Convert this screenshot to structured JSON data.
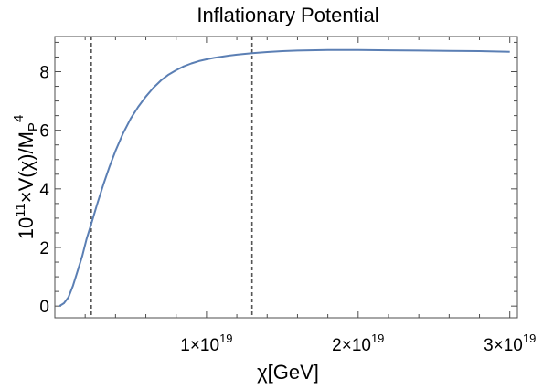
{
  "chart_data": {
    "type": "line",
    "title": "Inflationary Potential",
    "xlabel": "χ[GeV]",
    "ylabel": "10¹¹×V(χ)/M_P⁴",
    "ylabel_parts": {
      "pre": "10",
      "sup": "11",
      "mid": "×V(χ)/",
      "base": "M",
      "sub": "P",
      "sup2": "4"
    },
    "xlim": [
      0,
      3.05e+19
    ],
    "ylim": [
      -0.4,
      9.2
    ],
    "x_ticks": [
      {
        "value": 1e+19,
        "mantissa": "1×10",
        "exponent": "19"
      },
      {
        "value": 2e+19,
        "mantissa": "2×10",
        "exponent": "19"
      },
      {
        "value": 3e+19,
        "mantissa": "3×10",
        "exponent": "19"
      }
    ],
    "y_ticks": [
      0,
      2,
      4,
      6,
      8
    ],
    "vertical_markers": [
      2.4e+18,
      1.3e+19
    ],
    "series": [
      {
        "color": "#5b7fb4",
        "x": [
          3e+17,
          6e+17,
          9e+17,
          1.2e+18,
          1.5e+18,
          1.8e+18,
          2.1e+18,
          2.4e+18,
          2.8e+18,
          3.2e+18,
          3.6e+18,
          4e+18,
          4.5e+18,
          5e+18,
          5.5e+18,
          6e+18,
          6.5e+18,
          7e+18,
          7.5e+18,
          8e+18,
          8.5e+18,
          9e+18,
          9.5e+18,
          1e+19,
          1.05e+19,
          1.1e+19,
          1.15e+19,
          1.2e+19,
          1.3e+19,
          1.4e+19,
          1.5e+19,
          1.6e+19,
          1.8e+19,
          2e+19,
          2.2e+19,
          2.4e+19,
          2.6e+19,
          2.8e+19,
          3e+19
        ],
        "y": [
          0.0,
          0.1,
          0.3,
          0.7,
          1.2,
          1.7,
          2.3,
          2.8,
          3.5,
          4.15,
          4.75,
          5.3,
          5.9,
          6.4,
          6.8,
          7.15,
          7.45,
          7.7,
          7.9,
          8.05,
          8.18,
          8.28,
          8.36,
          8.42,
          8.47,
          8.51,
          8.55,
          8.58,
          8.63,
          8.67,
          8.7,
          8.72,
          8.74,
          8.74,
          8.73,
          8.72,
          8.71,
          8.7,
          8.68
        ]
      }
    ]
  }
}
